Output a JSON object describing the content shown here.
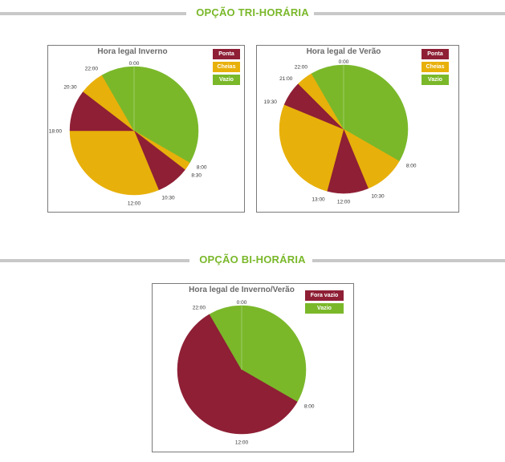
{
  "sections": {
    "tri": {
      "title": "OPÇÃO TRI-HORÁRIA"
    },
    "bi": {
      "title": "OPÇÃO BI-HORÁRIA"
    }
  },
  "colors": {
    "ponta": "#8e1f35",
    "cheias": "#e8b00a",
    "vazio": "#7ab82a",
    "rule": "#c8c8c8"
  },
  "chart_data": [
    {
      "type": "pie",
      "title": "Hora legal Inverno",
      "legend": [
        {
          "label": "Ponta",
          "color": "#8e1f35"
        },
        {
          "label": "Cheias",
          "color": "#e8b00a"
        },
        {
          "label": "Vazio",
          "color": "#7ab82a"
        }
      ],
      "slices": [
        {
          "from": "0:00",
          "to": "8:00",
          "category": "Vazio"
        },
        {
          "from": "8:00",
          "to": "8:30",
          "category": "Cheias"
        },
        {
          "from": "8:30",
          "to": "10:30",
          "category": "Ponta"
        },
        {
          "from": "10:30",
          "to": "18:00",
          "category": "Cheias"
        },
        {
          "from": "18:00",
          "to": "20:30",
          "category": "Ponta"
        },
        {
          "from": "20:30",
          "to": "22:00",
          "category": "Cheias"
        },
        {
          "from": "22:00",
          "to": "0:00",
          "category": "Vazio"
        }
      ],
      "labels": [
        "0:00",
        "8:00",
        "8:30",
        "10:30",
        "12:00",
        "18:00",
        "20:30",
        "22:00"
      ]
    },
    {
      "type": "pie",
      "title": "Hora legal de Verão",
      "legend": [
        {
          "label": "Ponta",
          "color": "#8e1f35"
        },
        {
          "label": "Cheias",
          "color": "#e8b00a"
        },
        {
          "label": "Vazio",
          "color": "#7ab82a"
        }
      ],
      "slices": [
        {
          "from": "0:00",
          "to": "8:00",
          "category": "Vazio"
        },
        {
          "from": "8:00",
          "to": "10:30",
          "category": "Cheias"
        },
        {
          "from": "10:30",
          "to": "13:00",
          "category": "Ponta"
        },
        {
          "from": "13:00",
          "to": "19:30",
          "category": "Cheias"
        },
        {
          "from": "19:30",
          "to": "21:00",
          "category": "Ponta"
        },
        {
          "from": "21:00",
          "to": "22:00",
          "category": "Cheias"
        },
        {
          "from": "22:00",
          "to": "0:00",
          "category": "Vazio"
        }
      ],
      "labels": [
        "0:00",
        "8:00",
        "10:30",
        "12:00",
        "13:00",
        "19:30",
        "21:00",
        "22:00"
      ]
    },
    {
      "type": "pie",
      "title": "Hora legal de Inverno/Verão",
      "legend": [
        {
          "label": "Fora vazio",
          "color": "#8e1f35"
        },
        {
          "label": "Vazio",
          "color": "#7ab82a"
        }
      ],
      "slices": [
        {
          "from": "0:00",
          "to": "8:00",
          "category": "Vazio"
        },
        {
          "from": "8:00",
          "to": "22:00",
          "category": "Fora vazio"
        },
        {
          "from": "22:00",
          "to": "0:00",
          "category": "Vazio"
        }
      ],
      "labels": [
        "0:00",
        "8:00",
        "12:00",
        "22:00"
      ]
    }
  ]
}
